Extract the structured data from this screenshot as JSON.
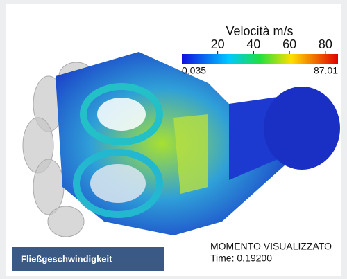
{
  "colorbar": {
    "title": "Velocità m/s",
    "range": [
      0.035,
      87.01
    ],
    "ticks": [
      20,
      40,
      60,
      80
    ]
  },
  "annotation": {
    "line1": "MOMENTO VISUALIZZATO",
    "line2": "Time: 0.19200"
  },
  "caption": "Fließgeschwindigkeit"
}
